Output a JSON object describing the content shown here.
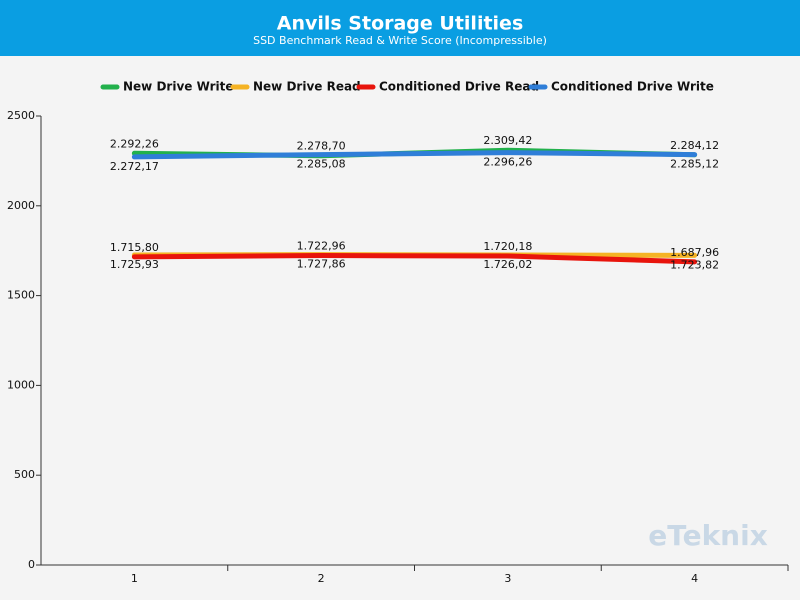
{
  "chart_data": {
    "type": "line",
    "title": "Anvils Storage Utilities",
    "subtitle": "SSD Benchmark Read & Write Score (Incompressible)",
    "watermark": "eTeknix",
    "categories": [
      "1",
      "2",
      "3",
      "4"
    ],
    "ylim": [
      0,
      2500
    ],
    "yticks": [
      0,
      500,
      1000,
      1500,
      2000,
      2500
    ],
    "grid": false,
    "legend": "top",
    "series": [
      {
        "name": "New Drive Write",
        "color": "#22b14c",
        "values": [
          2292.26,
          2278.7,
          2309.42,
          2284.12
        ],
        "value_labels": [
          "2.292,26",
          "2.278,70",
          "2.309,42",
          "2.284,12"
        ]
      },
      {
        "name": "New Drive Read",
        "color": "#f5b324",
        "values": [
          1725.93,
          1727.86,
          1726.02,
          1723.82
        ],
        "value_labels": [
          "1.725,93",
          "1.727,86",
          "1.726,02",
          "1.723,82"
        ]
      },
      {
        "name": "Conditioned Drive Read",
        "color": "#e8140c",
        "values": [
          1715.8,
          1722.96,
          1720.18,
          1687.96
        ],
        "value_labels": [
          "1.715,80",
          "1.722,96",
          "1.720,18",
          "1.687,96"
        ]
      },
      {
        "name": "Conditioned Drive Write",
        "color": "#2f7ed8",
        "values": [
          2272.17,
          2285.08,
          2296.26,
          2285.12
        ],
        "value_labels": [
          "2.272,17",
          "2.285,08",
          "2.296,26",
          "2.285,12"
        ]
      }
    ]
  }
}
